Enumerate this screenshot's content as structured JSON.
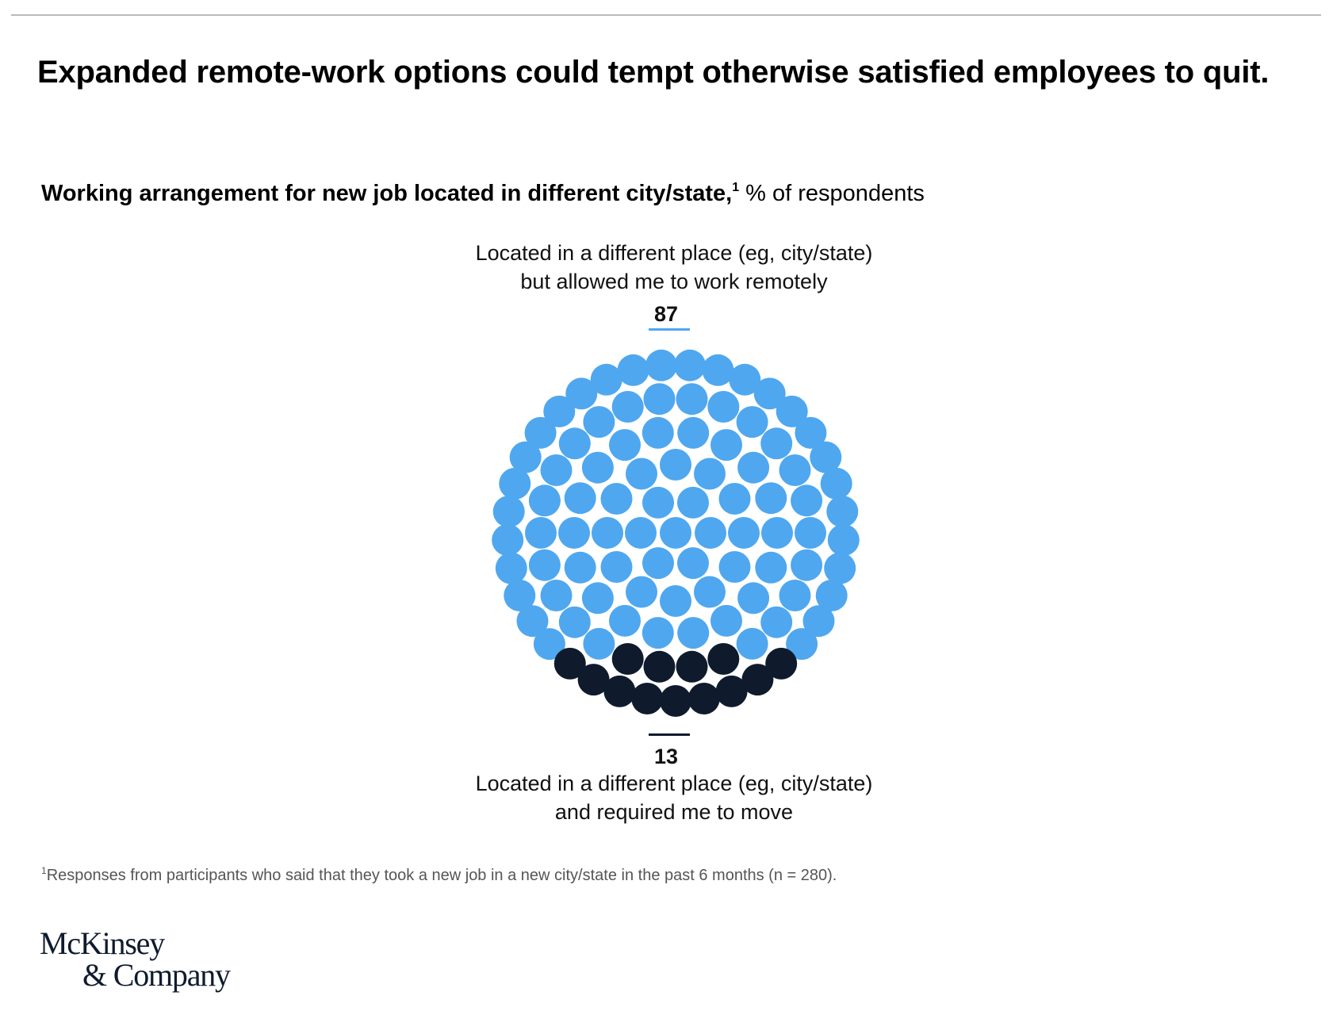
{
  "title": "Expanded remote-work options could tempt otherwise satisfied employees to quit.",
  "subtitle": {
    "bold": "Working arrangement for new job located in different city/state,",
    "sup": "1",
    "unit": " % of respondents"
  },
  "chart_data": {
    "type": "dot-matrix",
    "categories": [
      "Located in a different place (eg, city/state) but allowed me to work remotely",
      "Located in a different place (eg, city/state) and required me to move"
    ],
    "values": [
      87,
      13
    ],
    "colors": [
      "#4fa7ef",
      "#0f1b2d"
    ]
  },
  "labels": {
    "top_line1": "Located in a different place (eg, city/state)",
    "top_line2": "but allowed me to work remotely",
    "top_value": "87",
    "bottom_value": "13",
    "bottom_line1": "Located in a different place (eg, city/state)",
    "bottom_line2": "and required me to move"
  },
  "footnote": {
    "sup": "1",
    "text": "Responses from participants who said that they took a new job in a new city/state in the past 6 months (n = 280)."
  },
  "logo": {
    "line1": "McKinsey",
    "line2": "& Company"
  }
}
